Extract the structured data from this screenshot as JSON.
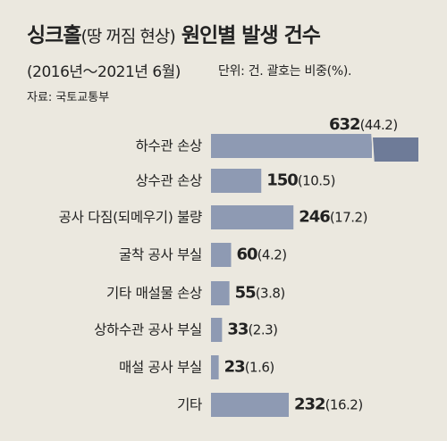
{
  "header": {
    "title_main": "싱크홀",
    "title_paren": "(땅 꺼짐 현상)",
    "title_rest": "원인별 발생 건수",
    "period": "(2016년～2021년 6월)",
    "unit": "단위: 건. 괄호는 비중(%).",
    "source": "자료: 국토교통부"
  },
  "colors": {
    "bar": "#8e9ab3",
    "bar_dark": "#6e7b98",
    "background": "#ebe8df"
  },
  "chart_data": {
    "type": "bar",
    "orientation": "horizontal",
    "title": "싱크홀(땅 꺼짐 현상) 원인별 발생 건수",
    "subtitle": "(2016년～2021년 6월)",
    "unit": "단위: 건. 괄호는 비중(%).",
    "categories": [
      "하수관 손상",
      "상수관 손상",
      "공사 다짐(되메우기) 불량",
      "굴착 공사 부실",
      "기타 매설물 손상",
      "상하수관 공사 부실",
      "매설 공사 부실",
      "기타"
    ],
    "values": [
      632,
      150,
      246,
      60,
      55,
      33,
      23,
      232
    ],
    "percent_labels": [
      "(44.2)",
      "(10.5)",
      "(17.2)",
      "(4.2)",
      "(3.8)",
      "(2.3)",
      "(1.6)",
      "(16.2)"
    ],
    "value_labels": [
      "632",
      "150",
      "246",
      "60",
      "55",
      "33",
      "23",
      "232"
    ],
    "first_bar_broken": true,
    "grid": false,
    "legend": "none"
  }
}
